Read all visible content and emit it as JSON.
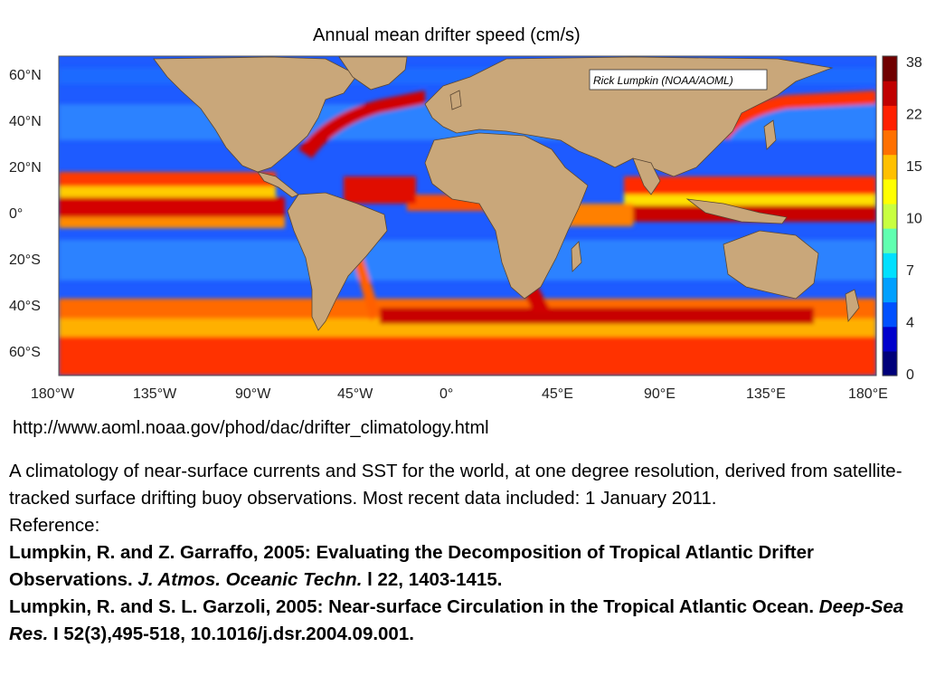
{
  "title": "Annual mean drifter speed (cm/s)",
  "credit": "Rick Lumpkin (NOAA/AOML)",
  "lat_labels": [
    "60°N",
    "40°N",
    "20°N",
    "0°",
    "20°S",
    "40°S",
    "60°S"
  ],
  "lon_labels": [
    "180°W",
    "135°W",
    "90°W",
    "45°W",
    "0°",
    "45°E",
    "90°E",
    "135°E",
    "180°E"
  ],
  "colorbar": {
    "unit": "cm/s",
    "ticks": [
      "38",
      "22",
      "15",
      "10",
      "7",
      "4",
      "0"
    ],
    "colors": [
      "#00007a",
      "#0000cc",
      "#0050ff",
      "#00a0ff",
      "#00e0ff",
      "#60ffb0",
      "#c8ff40",
      "#ffff00",
      "#ffc000",
      "#ff7000",
      "#ff2000",
      "#c00000",
      "#700000"
    ]
  },
  "colors": {
    "land": "#c9a77a",
    "ocean": "#1e5bff"
  },
  "url": "http://www.aoml.noaa.gov/phod/dac/drifter_climatology.html",
  "description": "A climatology of near-surface currents and SST for the world, at one degree resolution, derived from satellite-tracked surface drifting buoy observations. Most recent data included: 1 January 2011.",
  "reference_label": "Reference:",
  "references": [
    {
      "authors_title": "Lumpkin, R. and Z. Garraffo, 2005: Evaluating the Decomposition of Tropical Atlantic Drifter Observations.",
      "journal": "J. Atmos. Oceanic Techn.",
      "details": "l 22, 1403-1415."
    },
    {
      "authors_title": "Lumpkin, R. and S. L. Garzoli, 2005: Near-surface Circulation in the Tropical Atlantic Ocean.",
      "journal": "Deep-Sea Res.",
      "details": "I 52(3),495-518, 10.1016/j.dsr.2004.09.001."
    }
  ]
}
